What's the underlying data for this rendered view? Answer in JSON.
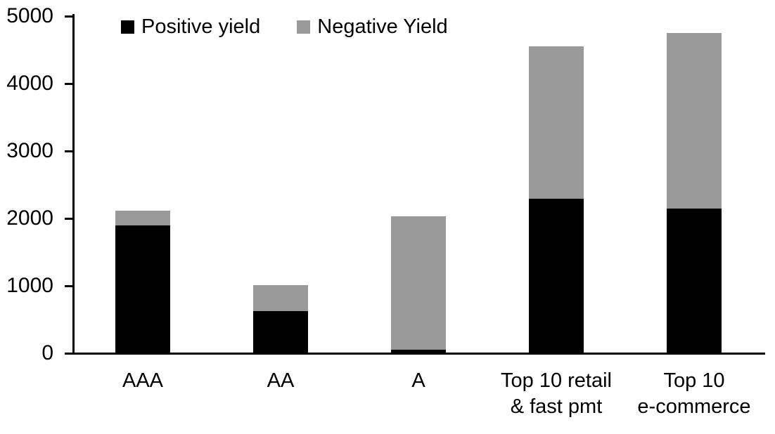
{
  "chart_data": {
    "type": "bar",
    "stacked": true,
    "title": "",
    "xlabel": "",
    "ylabel": "",
    "categories": [
      "AAA",
      "AA",
      "A",
      "Top 10 retail\n& fast pmt",
      "Top 10\ne-commerce"
    ],
    "series": [
      {
        "name": "Positive yield",
        "color": "#000000",
        "values": [
          1900,
          630,
          55,
          2290,
          2150
        ]
      },
      {
        "name": "Negative Yield",
        "color": "#999999",
        "values": [
          210,
          380,
          1975,
          2260,
          2600
        ]
      }
    ],
    "totals": [
      2110,
      1010,
      2030,
      4550,
      4750
    ],
    "ylim": [
      0,
      5000
    ],
    "yticks": [
      0,
      1000,
      2000,
      3000,
      4000,
      5000
    ],
    "grid": false,
    "legend_position": "top"
  }
}
